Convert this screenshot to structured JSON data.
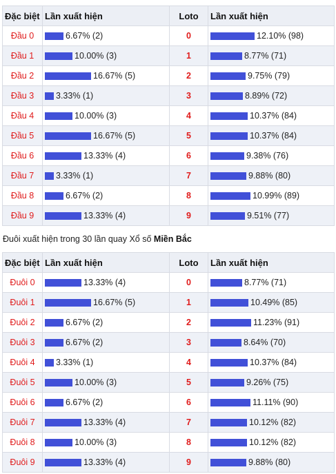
{
  "table1": {
    "headers": {
      "special": "Đặc biệt",
      "freq": "Lần xuất hiện",
      "loto": "Loto",
      "freq2": "Lần xuất hiện"
    },
    "rows": [
      {
        "name": "Đầu 0",
        "pct": "6.67% (2)",
        "p": 6.67,
        "num": "0",
        "lpct": "12.10% (98)",
        "lp": 12.1
      },
      {
        "name": "Đầu 1",
        "pct": "10.00% (3)",
        "p": 10.0,
        "num": "1",
        "lpct": "8.77% (71)",
        "lp": 8.77
      },
      {
        "name": "Đầu 2",
        "pct": "16.67% (5)",
        "p": 16.67,
        "num": "2",
        "lpct": "9.75% (79)",
        "lp": 9.75
      },
      {
        "name": "Đầu 3",
        "pct": "3.33% (1)",
        "p": 3.33,
        "num": "3",
        "lpct": "8.89% (72)",
        "lp": 8.89
      },
      {
        "name": "Đầu 4",
        "pct": "10.00% (3)",
        "p": 10.0,
        "num": "4",
        "lpct": "10.37% (84)",
        "lp": 10.37
      },
      {
        "name": "Đầu 5",
        "pct": "16.67% (5)",
        "p": 16.67,
        "num": "5",
        "lpct": "10.37% (84)",
        "lp": 10.37
      },
      {
        "name": "Đầu 6",
        "pct": "13.33% (4)",
        "p": 13.33,
        "num": "6",
        "lpct": "9.38% (76)",
        "lp": 9.38
      },
      {
        "name": "Đầu 7",
        "pct": "3.33% (1)",
        "p": 3.33,
        "num": "7",
        "lpct": "9.88% (80)",
        "lp": 9.88
      },
      {
        "name": "Đầu 8",
        "pct": "6.67% (2)",
        "p": 6.67,
        "num": "8",
        "lpct": "10.99% (89)",
        "lp": 10.99
      },
      {
        "name": "Đầu 9",
        "pct": "13.33% (4)",
        "p": 13.33,
        "num": "9",
        "lpct": "9.51% (77)",
        "lp": 9.51
      }
    ]
  },
  "caption": {
    "text": "Đuôi xuất hiện trong 30 lần quay Xổ số ",
    "bold": "Miền Bắc"
  },
  "table2": {
    "headers": {
      "special": "Đặc biệt",
      "freq": "Lần xuất hiện",
      "loto": "Loto",
      "freq2": "Lần xuất hiện"
    },
    "rows": [
      {
        "name": "Đuôi 0",
        "pct": "13.33% (4)",
        "p": 13.33,
        "num": "0",
        "lpct": "8.77% (71)",
        "lp": 8.77
      },
      {
        "name": "Đuôi 1",
        "pct": "16.67% (5)",
        "p": 16.67,
        "num": "1",
        "lpct": "10.49% (85)",
        "lp": 10.49
      },
      {
        "name": "Đuôi 2",
        "pct": "6.67% (2)",
        "p": 6.67,
        "num": "2",
        "lpct": "11.23% (91)",
        "lp": 11.23
      },
      {
        "name": "Đuôi 3",
        "pct": "6.67% (2)",
        "p": 6.67,
        "num": "3",
        "lpct": "8.64% (70)",
        "lp": 8.64
      },
      {
        "name": "Đuôi 4",
        "pct": "3.33% (1)",
        "p": 3.33,
        "num": "4",
        "lpct": "10.37% (84)",
        "lp": 10.37
      },
      {
        "name": "Đuôi 5",
        "pct": "10.00% (3)",
        "p": 10.0,
        "num": "5",
        "lpct": "9.26% (75)",
        "lp": 9.26
      },
      {
        "name": "Đuôi 6",
        "pct": "6.67% (2)",
        "p": 6.67,
        "num": "6",
        "lpct": "11.11% (90)",
        "lp": 11.11
      },
      {
        "name": "Đuôi 7",
        "pct": "13.33% (4)",
        "p": 13.33,
        "num": "7",
        "lpct": "10.12% (82)",
        "lp": 10.12
      },
      {
        "name": "Đuôi 8",
        "pct": "10.00% (3)",
        "p": 10.0,
        "num": "8",
        "lpct": "10.12% (82)",
        "lp": 10.12
      },
      {
        "name": "Đuôi 9",
        "pct": "13.33% (4)",
        "p": 13.33,
        "num": "9",
        "lpct": "9.88% (80)",
        "lp": 9.88
      }
    ]
  },
  "colors": {
    "bar": "#4150d8",
    "label_red": "#e01b1b",
    "row_alt": "#eef1f7",
    "header_bg": "#eceff5"
  }
}
